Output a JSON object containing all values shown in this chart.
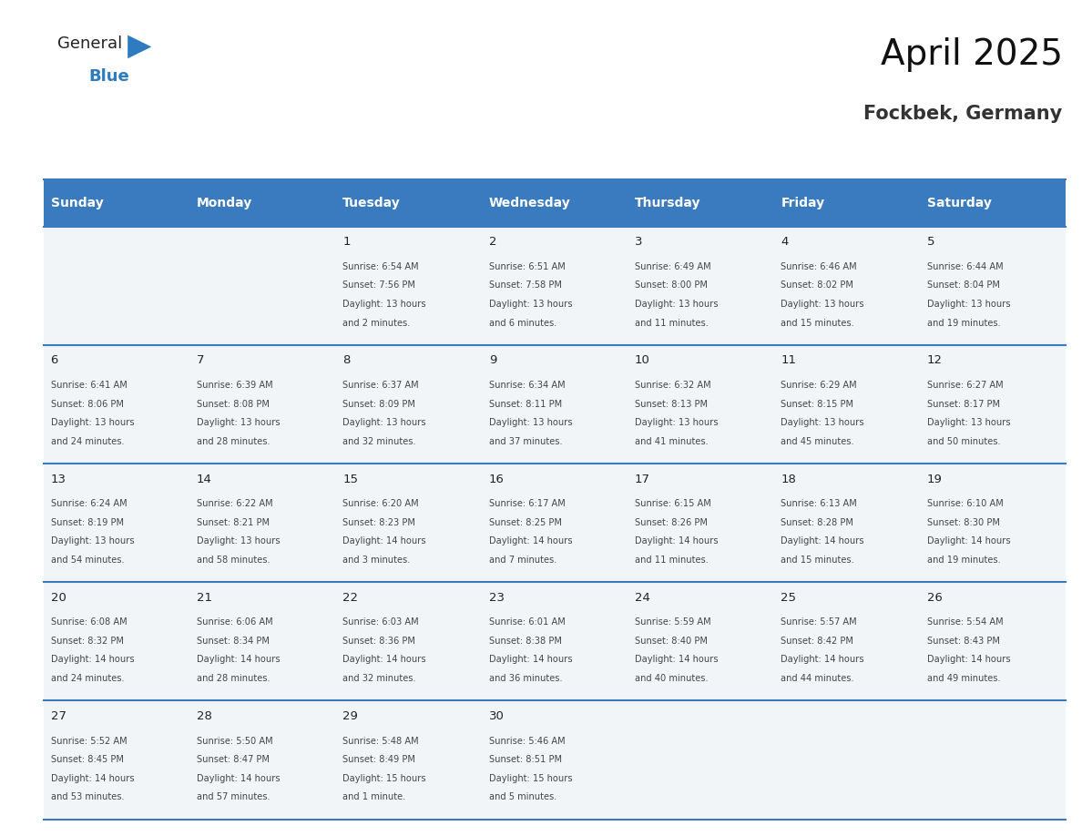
{
  "title": "April 2025",
  "subtitle": "Fockbek, Germany",
  "days_of_week": [
    "Sunday",
    "Monday",
    "Tuesday",
    "Wednesday",
    "Thursday",
    "Friday",
    "Saturday"
  ],
  "header_bg": "#3a7abf",
  "header_text": "#ffffff",
  "cell_bg": "#f2f5f8",
  "separator_color": "#3a7abf",
  "text_color": "#444444",
  "day_num_color": "#222222",
  "logo_color1": "#222222",
  "logo_color2": "#2e7bbf",
  "calendar_data": {
    "1": {
      "dow": 1,
      "sunrise": "6:54 AM",
      "sunset": "7:56 PM",
      "daylight_l1": "13 hours",
      "daylight_l2": "and 2 minutes."
    },
    "2": {
      "dow": 2,
      "sunrise": "6:51 AM",
      "sunset": "7:58 PM",
      "daylight_l1": "13 hours",
      "daylight_l2": "and 6 minutes."
    },
    "3": {
      "dow": 3,
      "sunrise": "6:49 AM",
      "sunset": "8:00 PM",
      "daylight_l1": "13 hours",
      "daylight_l2": "and 11 minutes."
    },
    "4": {
      "dow": 4,
      "sunrise": "6:46 AM",
      "sunset": "8:02 PM",
      "daylight_l1": "13 hours",
      "daylight_l2": "and 15 minutes."
    },
    "5": {
      "dow": 5,
      "sunrise": "6:44 AM",
      "sunset": "8:04 PM",
      "daylight_l1": "13 hours",
      "daylight_l2": "and 19 minutes."
    },
    "6": {
      "dow": 6,
      "sunrise": "6:41 AM",
      "sunset": "8:06 PM",
      "daylight_l1": "13 hours",
      "daylight_l2": "and 24 minutes."
    },
    "7": {
      "dow": 0,
      "sunrise": "6:39 AM",
      "sunset": "8:08 PM",
      "daylight_l1": "13 hours",
      "daylight_l2": "and 28 minutes."
    },
    "8": {
      "dow": 1,
      "sunrise": "6:37 AM",
      "sunset": "8:09 PM",
      "daylight_l1": "13 hours",
      "daylight_l2": "and 32 minutes."
    },
    "9": {
      "dow": 2,
      "sunrise": "6:34 AM",
      "sunset": "8:11 PM",
      "daylight_l1": "13 hours",
      "daylight_l2": "and 37 minutes."
    },
    "10": {
      "dow": 3,
      "sunrise": "6:32 AM",
      "sunset": "8:13 PM",
      "daylight_l1": "13 hours",
      "daylight_l2": "and 41 minutes."
    },
    "11": {
      "dow": 4,
      "sunrise": "6:29 AM",
      "sunset": "8:15 PM",
      "daylight_l1": "13 hours",
      "daylight_l2": "and 45 minutes."
    },
    "12": {
      "dow": 5,
      "sunrise": "6:27 AM",
      "sunset": "8:17 PM",
      "daylight_l1": "13 hours",
      "daylight_l2": "and 50 minutes."
    },
    "13": {
      "dow": 6,
      "sunrise": "6:24 AM",
      "sunset": "8:19 PM",
      "daylight_l1": "13 hours",
      "daylight_l2": "and 54 minutes."
    },
    "14": {
      "dow": 0,
      "sunrise": "6:22 AM",
      "sunset": "8:21 PM",
      "daylight_l1": "13 hours",
      "daylight_l2": "and 58 minutes."
    },
    "15": {
      "dow": 1,
      "sunrise": "6:20 AM",
      "sunset": "8:23 PM",
      "daylight_l1": "14 hours",
      "daylight_l2": "and 3 minutes."
    },
    "16": {
      "dow": 2,
      "sunrise": "6:17 AM",
      "sunset": "8:25 PM",
      "daylight_l1": "14 hours",
      "daylight_l2": "and 7 minutes."
    },
    "17": {
      "dow": 3,
      "sunrise": "6:15 AM",
      "sunset": "8:26 PM",
      "daylight_l1": "14 hours",
      "daylight_l2": "and 11 minutes."
    },
    "18": {
      "dow": 4,
      "sunrise": "6:13 AM",
      "sunset": "8:28 PM",
      "daylight_l1": "14 hours",
      "daylight_l2": "and 15 minutes."
    },
    "19": {
      "dow": 5,
      "sunrise": "6:10 AM",
      "sunset": "8:30 PM",
      "daylight_l1": "14 hours",
      "daylight_l2": "and 19 minutes."
    },
    "20": {
      "dow": 6,
      "sunrise": "6:08 AM",
      "sunset": "8:32 PM",
      "daylight_l1": "14 hours",
      "daylight_l2": "and 24 minutes."
    },
    "21": {
      "dow": 0,
      "sunrise": "6:06 AM",
      "sunset": "8:34 PM",
      "daylight_l1": "14 hours",
      "daylight_l2": "and 28 minutes."
    },
    "22": {
      "dow": 1,
      "sunrise": "6:03 AM",
      "sunset": "8:36 PM",
      "daylight_l1": "14 hours",
      "daylight_l2": "and 32 minutes."
    },
    "23": {
      "dow": 2,
      "sunrise": "6:01 AM",
      "sunset": "8:38 PM",
      "daylight_l1": "14 hours",
      "daylight_l2": "and 36 minutes."
    },
    "24": {
      "dow": 3,
      "sunrise": "5:59 AM",
      "sunset": "8:40 PM",
      "daylight_l1": "14 hours",
      "daylight_l2": "and 40 minutes."
    },
    "25": {
      "dow": 4,
      "sunrise": "5:57 AM",
      "sunset": "8:42 PM",
      "daylight_l1": "14 hours",
      "daylight_l2": "and 44 minutes."
    },
    "26": {
      "dow": 5,
      "sunrise": "5:54 AM",
      "sunset": "8:43 PM",
      "daylight_l1": "14 hours",
      "daylight_l2": "and 49 minutes."
    },
    "27": {
      "dow": 6,
      "sunrise": "5:52 AM",
      "sunset": "8:45 PM",
      "daylight_l1": "14 hours",
      "daylight_l2": "and 53 minutes."
    },
    "28": {
      "dow": 0,
      "sunrise": "5:50 AM",
      "sunset": "8:47 PM",
      "daylight_l1": "14 hours",
      "daylight_l2": "and 57 minutes."
    },
    "29": {
      "dow": 1,
      "sunrise": "5:48 AM",
      "sunset": "8:49 PM",
      "daylight_l1": "15 hours",
      "daylight_l2": "and 1 minute."
    },
    "30": {
      "dow": 2,
      "sunrise": "5:46 AM",
      "sunset": "8:51 PM",
      "daylight_l1": "15 hours",
      "daylight_l2": "and 5 minutes."
    }
  },
  "num_rows": 5,
  "num_cols": 7
}
